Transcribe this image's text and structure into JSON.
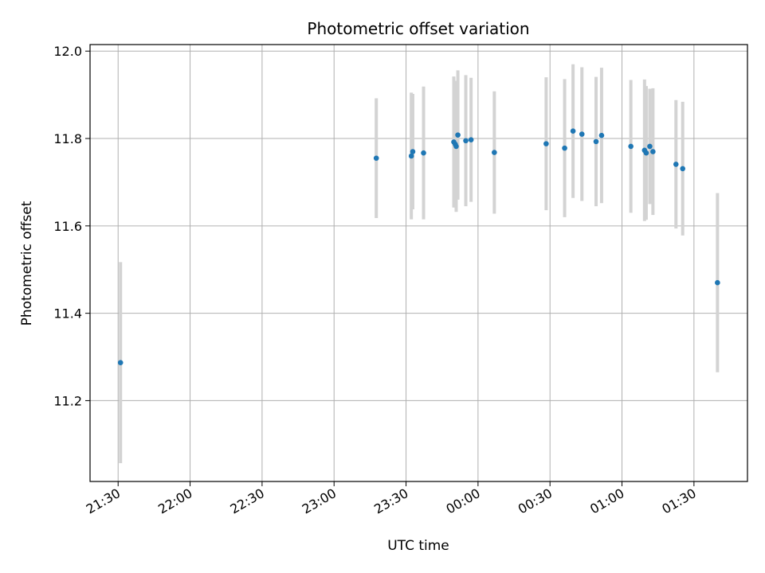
{
  "chart_data": {
    "type": "scatter",
    "title": "Photometric offset variation",
    "xlabel": "UTC time",
    "ylabel": "Photometric offset",
    "grid": true,
    "x_ticks": [
      {
        "t": 1290,
        "label": "21:30"
      },
      {
        "t": 1320,
        "label": "22:00"
      },
      {
        "t": 1350,
        "label": "22:30"
      },
      {
        "t": 1380,
        "label": "23:00"
      },
      {
        "t": 1410,
        "label": "23:30"
      },
      {
        "t": 1440,
        "label": "00:00"
      },
      {
        "t": 1470,
        "label": "00:30"
      },
      {
        "t": 1500,
        "label": "01:00"
      },
      {
        "t": 1530,
        "label": "01:30"
      }
    ],
    "y_ticks": [
      11.2,
      11.4,
      11.6,
      11.8,
      12.0
    ],
    "xlim": [
      1278.3,
      1552.3
    ],
    "ylim": [
      11.015,
      12.015
    ],
    "colors": {
      "points": "#1f77b4",
      "errorbars": "#d3d3d3",
      "grid": "#b0b0b0"
    },
    "series": [
      {
        "points": [
          {
            "t": 1291.0,
            "y": 11.287,
            "err": 0.23
          },
          {
            "t": 1397.6,
            "y": 11.755,
            "err": 0.137
          },
          {
            "t": 1412.2,
            "y": 11.76,
            "err": 0.145
          },
          {
            "t": 1412.8,
            "y": 11.77,
            "err": 0.132
          },
          {
            "t": 1417.3,
            "y": 11.767,
            "err": 0.152
          },
          {
            "t": 1429.9,
            "y": 11.792,
            "err": 0.15
          },
          {
            "t": 1430.5,
            "y": 11.787,
            "err": 0.145
          },
          {
            "t": 1430.9,
            "y": 11.782,
            "err": 0.15
          },
          {
            "t": 1431.6,
            "y": 11.808,
            "err": 0.148
          },
          {
            "t": 1434.9,
            "y": 11.795,
            "err": 0.15
          },
          {
            "t": 1437.1,
            "y": 11.797,
            "err": 0.142
          },
          {
            "t": 1446.8,
            "y": 11.768,
            "err": 0.14
          },
          {
            "t": 1468.4,
            "y": 11.788,
            "err": 0.152
          },
          {
            "t": 1476.1,
            "y": 11.778,
            "err": 0.158
          },
          {
            "t": 1479.6,
            "y": 11.817,
            "err": 0.153
          },
          {
            "t": 1483.3,
            "y": 11.81,
            "err": 0.153
          },
          {
            "t": 1489.2,
            "y": 11.793,
            "err": 0.148
          },
          {
            "t": 1491.5,
            "y": 11.807,
            "err": 0.155
          },
          {
            "t": 1503.7,
            "y": 11.782,
            "err": 0.152
          },
          {
            "t": 1509.4,
            "y": 11.773,
            "err": 0.162
          },
          {
            "t": 1510.1,
            "y": 11.767,
            "err": 0.153
          },
          {
            "t": 1511.6,
            "y": 11.782,
            "err": 0.132
          },
          {
            "t": 1512.9,
            "y": 11.77,
            "err": 0.145
          },
          {
            "t": 1522.5,
            "y": 11.741,
            "err": 0.147
          },
          {
            "t": 1525.3,
            "y": 11.731,
            "err": 0.153
          },
          {
            "t": 1539.8,
            "y": 11.47,
            "err": 0.205
          }
        ]
      }
    ]
  }
}
